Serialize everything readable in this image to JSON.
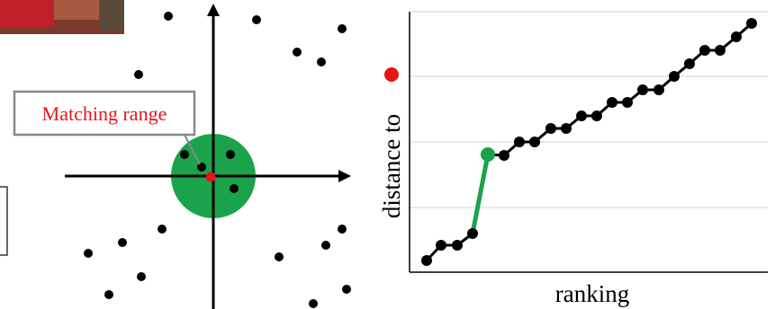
{
  "callout": {
    "label": "Matching range"
  },
  "plot": {
    "y_label": "distance to",
    "x_label": "ranking"
  }
}
